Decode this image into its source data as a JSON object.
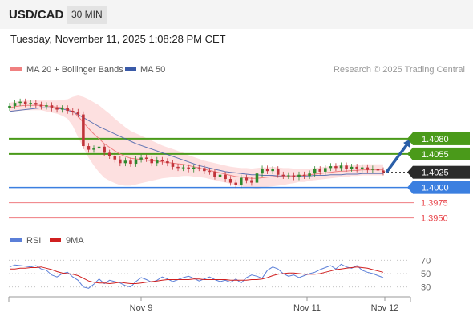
{
  "header": {
    "symbol": "USD/CAD",
    "timeframe": "30 MIN",
    "timestamp": "Tuesday, November 11, 2025 1:08:28 PM CET"
  },
  "legend": {
    "ma20_label": "MA 20 + Bollinger Bands",
    "ma50_label": "MA 50",
    "research": "Research © 2025 Trading Central",
    "rsi_label": "RSI",
    "rsi_ma_label": "9MA"
  },
  "colors": {
    "green": "#4a9a1a",
    "blue": "#3b7fe0",
    "red": "#e8444a",
    "dark": "#2b2b2b",
    "ma20": "#f08080",
    "ma50": "#3a5aa8",
    "band_fill": "#fde0e0",
    "candle_up": "#2d8a2d",
    "candle_down": "#c0333a"
  },
  "chart_data": {
    "type": "line",
    "x_ticks": [
      "Nov 9",
      "Nov 11",
      "Nov 12"
    ],
    "price": {
      "ylim": [
        1.3935,
        1.4155
      ],
      "levels": [
        {
          "value": 1.408,
          "label": "1.4080",
          "kind": "target",
          "color": "#4a9a1a"
        },
        {
          "value": 1.4055,
          "label": "1.4055",
          "kind": "resistance",
          "color": "#4a9a1a"
        },
        {
          "value": 1.4025,
          "label": "1.4025",
          "kind": "current",
          "color": "#2b2b2b"
        },
        {
          "value": 1.4,
          "label": "1.4000",
          "kind": "pivot",
          "color": "#3b7fe0"
        },
        {
          "value": 1.3975,
          "label": "1.3975",
          "kind": "support",
          "color": "#e8444a"
        },
        {
          "value": 1.395,
          "label": "1.3950",
          "kind": "support",
          "color": "#e8444a"
        }
      ],
      "close": [
        1.4134,
        1.4139,
        1.4141,
        1.4137,
        1.4139,
        1.4136,
        1.4133,
        1.4135,
        1.413,
        1.4128,
        1.413,
        1.4126,
        1.4124,
        1.412,
        1.4068,
        1.4062,
        1.4064,
        1.4067,
        1.4057,
        1.4052,
        1.4046,
        1.404,
        1.4044,
        1.4039,
        1.4046,
        1.4049,
        1.4047,
        1.404,
        1.4045,
        1.4043,
        1.404,
        1.4034,
        1.4032,
        1.4033,
        1.403,
        1.4033,
        1.4032,
        1.4027,
        1.4026,
        1.4018,
        1.4021,
        1.4014,
        1.4008,
        1.4004,
        1.4016,
        1.4012,
        1.4008,
        1.4023,
        1.4031,
        1.4027,
        1.403,
        1.4021,
        1.4019,
        1.402,
        1.4017,
        1.4021,
        1.4019,
        1.4023,
        1.403,
        1.4026,
        1.4032,
        1.4035,
        1.4032,
        1.4036,
        1.4031,
        1.4034,
        1.403,
        1.4033,
        1.4029,
        1.4031,
        1.4028,
        1.4025
      ],
      "ma20": [
        1.4131,
        1.4133,
        1.4134,
        1.4135,
        1.4135,
        1.4135,
        1.4135,
        1.4134,
        1.4133,
        1.4132,
        1.4131,
        1.4129,
        1.4125,
        1.4117,
        1.4107,
        1.4097,
        1.4088,
        1.408,
        1.4072,
        1.4066,
        1.406,
        1.4055,
        1.4051,
        1.4048,
        1.4047,
        1.4046,
        1.4045,
        1.4044,
        1.4043,
        1.4042,
        1.4041,
        1.404,
        1.4039,
        1.4038,
        1.4036,
        1.4034,
        1.4032,
        1.403,
        1.4028,
        1.4026,
        1.4024,
        1.4022,
        1.402,
        1.4018,
        1.4017,
        1.4016,
        1.4015,
        1.4015,
        1.4016,
        1.4017,
        1.4018,
        1.4018,
        1.4018,
        1.4019,
        1.4019,
        1.402,
        1.402,
        1.4021,
        1.4022,
        1.4023,
        1.4024,
        1.4025,
        1.4026,
        1.4027,
        1.4027,
        1.4028,
        1.4028,
        1.4029,
        1.4029,
        1.4029,
        1.4029,
        1.4029
      ],
      "ma50": [
        1.4125,
        1.4126,
        1.4127,
        1.4128,
        1.4129,
        1.413,
        1.4131,
        1.4131,
        1.4131,
        1.413,
        1.4129,
        1.4127,
        1.4124,
        1.412,
        1.4115,
        1.411,
        1.4105,
        1.41,
        1.4096,
        1.4092,
        1.4088,
        1.4084,
        1.408,
        1.4076,
        1.4072,
        1.4069,
        1.4066,
        1.4063,
        1.406,
        1.4057,
        1.4054,
        1.4051,
        1.4048,
        1.4045,
        1.4042,
        1.4039,
        1.4036,
        1.4034,
        1.4032,
        1.403,
        1.4028,
        1.4026,
        1.4025,
        1.4024,
        1.4023,
        1.4022,
        1.4021,
        1.4021,
        1.402,
        1.402,
        1.402,
        1.4019,
        1.4019,
        1.4019,
        1.4019,
        1.4019,
        1.4019,
        1.4019,
        1.402,
        1.402,
        1.402,
        1.4021,
        1.4021,
        1.4021,
        1.4022,
        1.4022,
        1.4022,
        1.4023,
        1.4023,
        1.4023,
        1.4023,
        1.4023
      ],
      "band_width": [
        0.0008,
        0.0008,
        0.0008,
        0.0008,
        0.0008,
        0.0008,
        0.0008,
        0.0009,
        0.001,
        0.0011,
        0.0013,
        0.0016,
        0.0024,
        0.0034,
        0.0042,
        0.0048,
        0.0052,
        0.0055,
        0.0056,
        0.0055,
        0.0053,
        0.0051,
        0.0048,
        0.0045,
        0.0042,
        0.0039,
        0.0036,
        0.0033,
        0.003,
        0.0027,
        0.0025,
        0.0023,
        0.0021,
        0.0019,
        0.0017,
        0.0016,
        0.0015,
        0.0014,
        0.0014,
        0.0014,
        0.0014,
        0.0014,
        0.0014,
        0.0015,
        0.0015,
        0.0016,
        0.0016,
        0.0017,
        0.0017,
        0.0016,
        0.0016,
        0.0015,
        0.0014,
        0.0013,
        0.0012,
        0.0011,
        0.0011,
        0.001,
        0.001,
        0.001,
        0.001,
        0.001,
        0.001,
        0.001,
        0.001,
        0.0009,
        0.0009,
        0.0009,
        0.0009,
        0.0009,
        0.0009,
        0.0009
      ],
      "projection": {
        "from": 1.4025,
        "to": 1.408
      }
    },
    "rsi": {
      "ylim": [
        20,
        80
      ],
      "ticks": [
        70,
        50,
        30
      ],
      "values": [
        60,
        63,
        62,
        61,
        60,
        62,
        57,
        55,
        48,
        45,
        50,
        52,
        45,
        40,
        30,
        28,
        34,
        42,
        35,
        40,
        38,
        36,
        32,
        30,
        38,
        44,
        41,
        37,
        40,
        45,
        42,
        38,
        41,
        44,
        46,
        43,
        39,
        42,
        45,
        41,
        38,
        40,
        37,
        42,
        36,
        44,
        48,
        46,
        43,
        55,
        60,
        57,
        50,
        46,
        48,
        44,
        47,
        50,
        52,
        56,
        59,
        62,
        57,
        64,
        60,
        58,
        62,
        55,
        52,
        50,
        47,
        44
      ],
      "ma9": [
        57,
        57,
        58,
        58,
        59,
        59,
        60,
        58,
        56,
        53,
        51,
        50,
        49,
        47,
        43,
        39,
        37,
        36,
        36,
        35,
        36,
        37,
        36,
        35,
        35,
        36,
        37,
        38,
        39,
        40,
        41,
        41,
        41,
        41,
        41,
        42,
        42,
        41,
        41,
        41,
        41,
        41,
        40,
        40,
        40,
        40,
        41,
        41,
        42,
        44,
        47,
        49,
        50,
        51,
        51,
        50,
        49,
        49,
        49,
        50,
        52,
        54,
        56,
        57,
        58,
        59,
        60,
        59,
        58,
        56,
        54,
        52
      ]
    }
  }
}
